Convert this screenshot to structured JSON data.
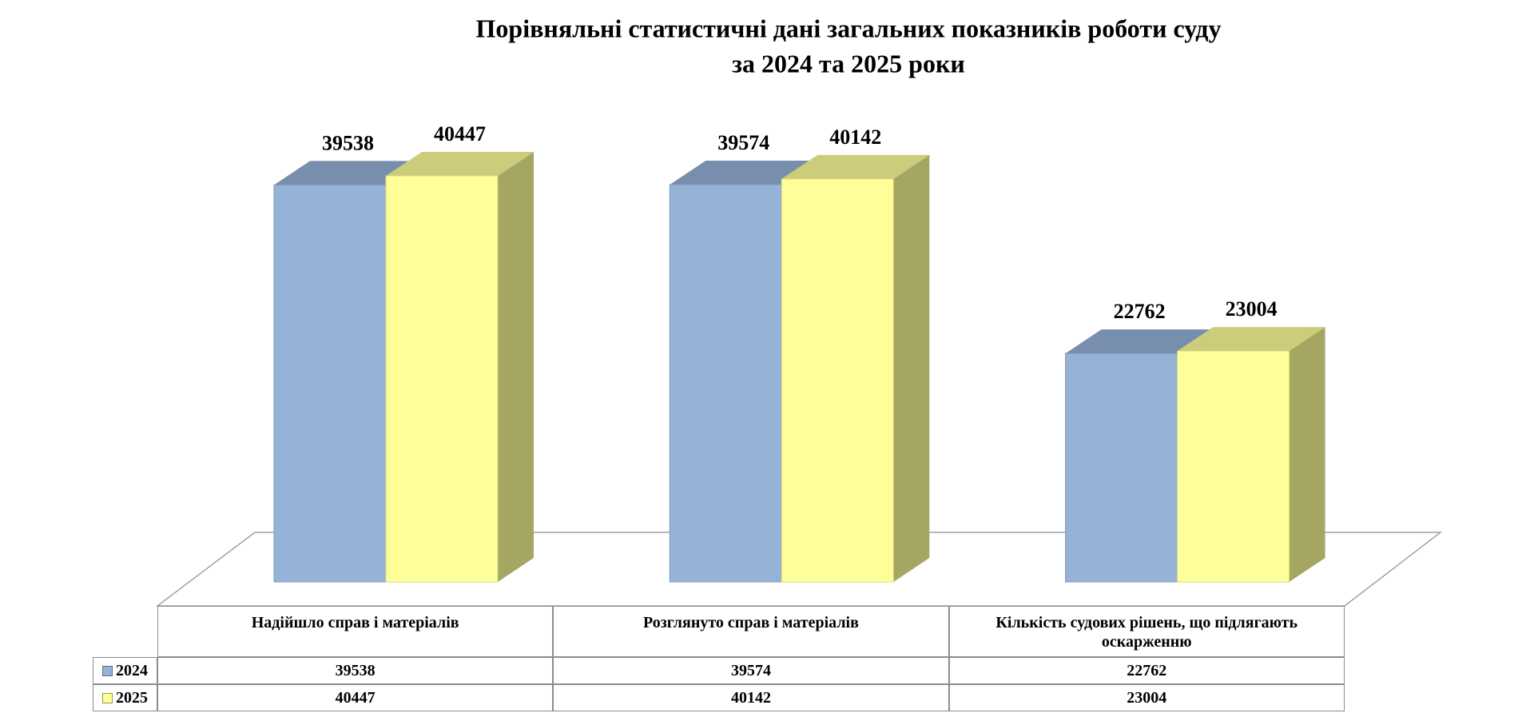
{
  "chart_data": {
    "type": "bar3d",
    "title": "Порівняльні статистичні дані загальних показників роботи суду",
    "subtitle": "за 2024 та 2025 роки",
    "categories": [
      "Надійшло справ і матеріалів",
      "Розглянуто справ і матеріалів",
      "Кількість судових рішень, що підлягають оскарженню"
    ],
    "series": [
      {
        "name": "2024",
        "color": "#95b3d7",
        "values": [
          39538,
          39574,
          22762
        ]
      },
      {
        "name": "2025",
        "color": "#ffff99",
        "values": [
          40447,
          40142,
          23004
        ]
      }
    ],
    "data_table": true
  }
}
